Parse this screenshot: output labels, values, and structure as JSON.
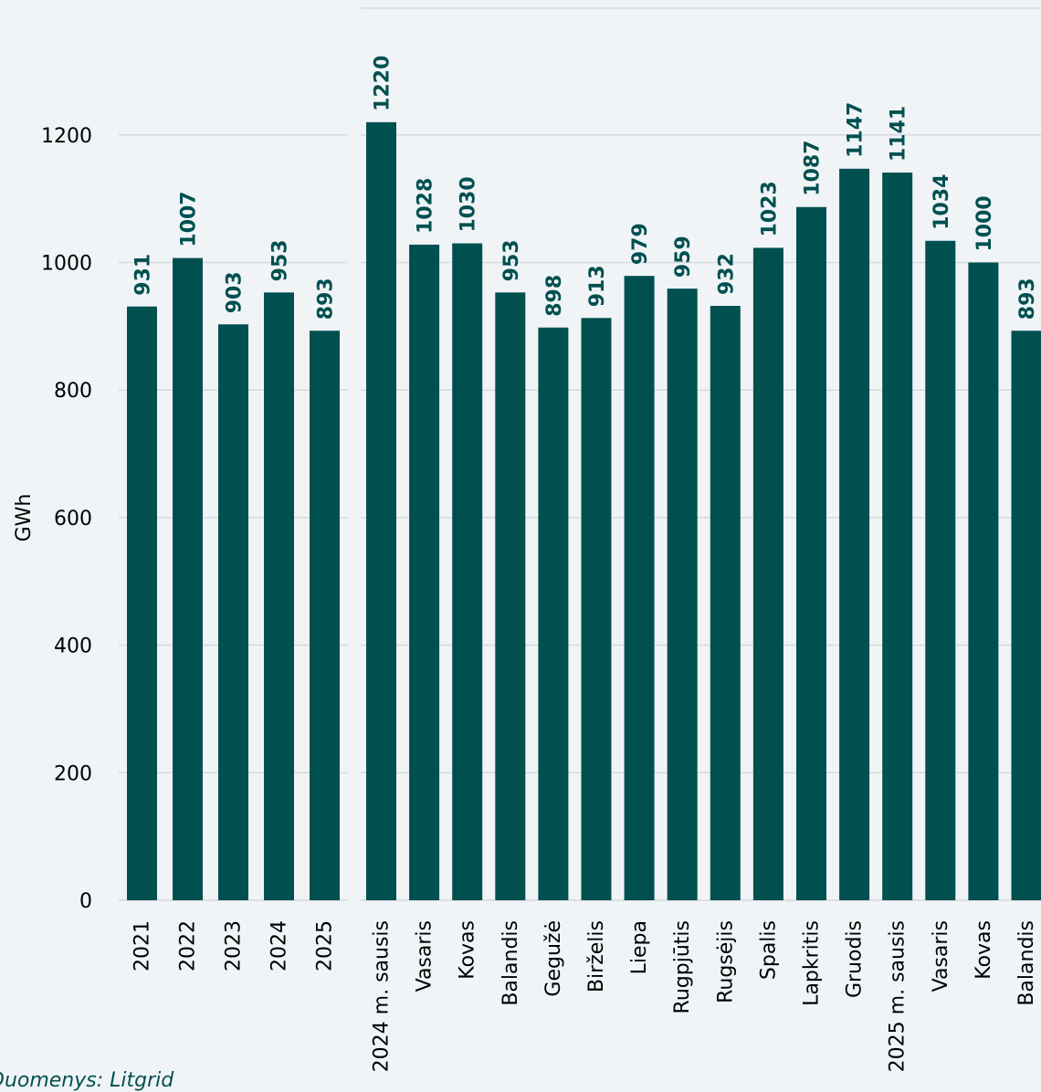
{
  "chart_data": [
    {
      "type": "bar",
      "categories": [
        "2021",
        "2022",
        "2023",
        "2024",
        "2025"
      ],
      "values": [
        931,
        1007,
        903,
        953,
        893
      ],
      "ylabel": "GWh",
      "ylim": [
        0,
        1200
      ],
      "yticks": [
        0,
        200,
        400,
        600,
        800,
        1000,
        1200
      ],
      "grid": true,
      "bar_color": "#005050"
    },
    {
      "type": "bar",
      "categories": [
        "2024 m. sausis",
        "Vasaris",
        "Kovas",
        "Balandis",
        "Gegužė",
        "Birželis",
        "Liepa",
        "Rugpjūtis",
        "Rugsėjis",
        "Spalis",
        "Lapkritis",
        "Gruodis",
        "2025 m. sausis",
        "Vasaris",
        "Kovas",
        "Balandis"
      ],
      "values": [
        1220,
        1028,
        1030,
        953,
        898,
        913,
        979,
        959,
        932,
        1023,
        1087,
        1147,
        1141,
        1034,
        1000,
        893
      ],
      "ylim": [
        0,
        1200
      ],
      "grid": true,
      "bar_color": "#005050"
    }
  ],
  "source": "Duomenys: Litgrid",
  "colors": {
    "bar": "#005050",
    "label": "#005050",
    "grid": "#d5dade",
    "background": "#f0f4f7"
  }
}
